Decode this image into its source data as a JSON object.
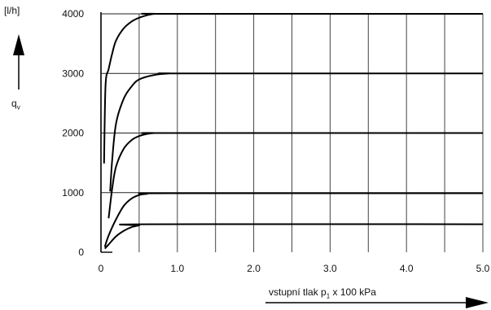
{
  "chart_data": {
    "type": "line",
    "y_unit_label": "[l/h]",
    "y_symbol": "q",
    "y_symbol_sub": "v",
    "x_label_prefix": "vstupní tlak p",
    "x_label_sub": "1",
    "x_label_suffix": " x 100 kPa",
    "xlim": [
      0,
      5.0
    ],
    "ylim": [
      0,
      4000
    ],
    "x_ticks": [
      0,
      1.0,
      2.0,
      3.0,
      4.0,
      5.0
    ],
    "x_tick_labels": [
      "0",
      "1.0",
      "2.0",
      "3.0",
      "4.0",
      "5.0"
    ],
    "y_ticks": [
      0,
      1000,
      2000,
      3000,
      4000
    ],
    "y_tick_labels": [
      "0",
      "1000",
      "2000",
      "3000",
      "4000"
    ],
    "x_grid": [
      0.5,
      1.0,
      1.5,
      2.0,
      2.5,
      3.0,
      3.5,
      4.0,
      4.5,
      5.0
    ],
    "grid": true,
    "series": [
      {
        "x": [
          0.05,
          0.1,
          0.2,
          0.3,
          0.4,
          0.5,
          0.6,
          5.0
        ],
        "values": [
          60,
          130,
          270,
          360,
          420,
          450,
          470,
          470
        ]
      },
      {
        "x": [
          0.05,
          0.1,
          0.2,
          0.3,
          0.4,
          0.5,
          0.6,
          0.9,
          5.0
        ],
        "values": [
          90,
          280,
          560,
          780,
          900,
          960,
          980,
          990,
          990
        ]
      },
      {
        "x": [
          0.1,
          0.15,
          0.2,
          0.3,
          0.4,
          0.5,
          0.6,
          0.7,
          0.9,
          5.0
        ],
        "values": [
          570,
          1100,
          1450,
          1740,
          1880,
          1950,
          1985,
          2000,
          2000,
          2000
        ]
      },
      {
        "x": [
          0.12,
          0.15,
          0.2,
          0.3,
          0.4,
          0.5,
          0.7,
          0.9,
          1.1,
          5.0
        ],
        "values": [
          1020,
          1600,
          2180,
          2580,
          2780,
          2900,
          2975,
          3000,
          3000,
          3000
        ]
      },
      {
        "x": [
          0.04,
          0.06,
          0.1,
          0.15,
          0.2,
          0.3,
          0.4,
          0.5,
          0.6,
          0.7,
          0.9,
          5.0
        ],
        "values": [
          1490,
          2800,
          3070,
          3350,
          3560,
          3760,
          3870,
          3935,
          3975,
          4000,
          4000,
          4000
        ]
      }
    ]
  }
}
